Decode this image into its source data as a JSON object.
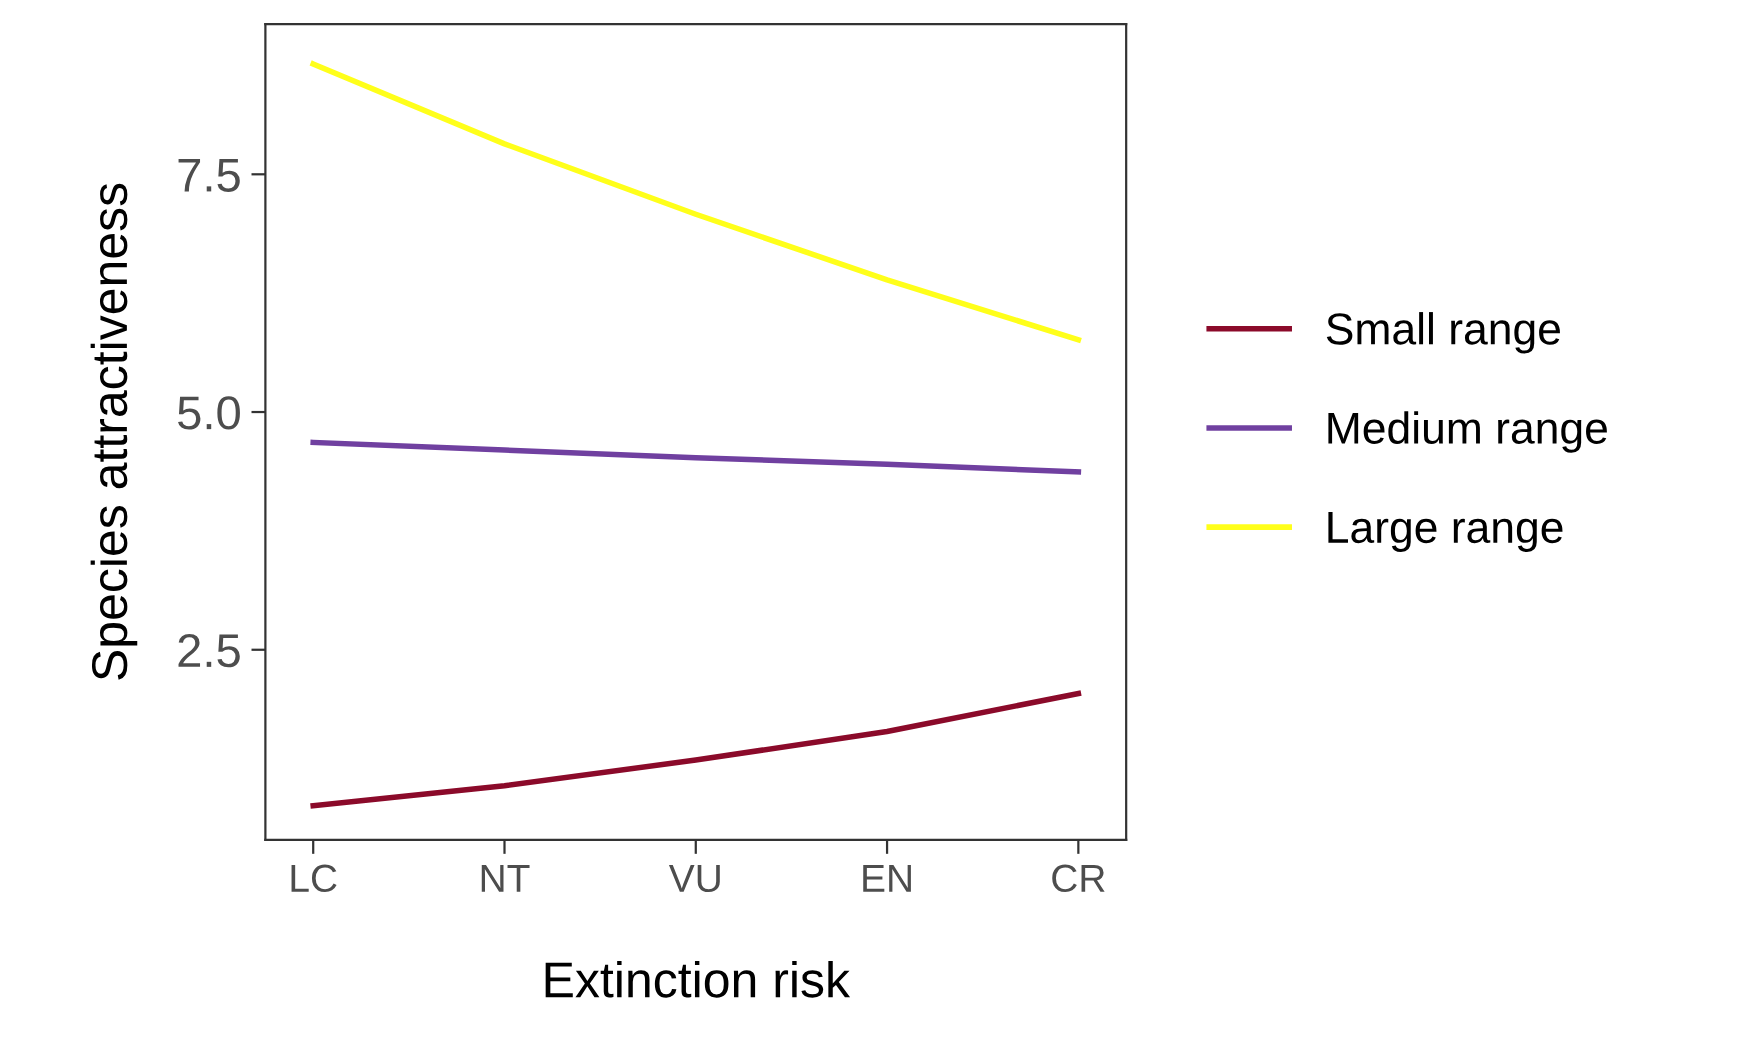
{
  "chart_data": {
    "type": "line",
    "xlabel": "Extinction risk",
    "ylabel": "Species attractiveness",
    "categories": [
      "LC",
      "NT",
      "VU",
      "EN",
      "CR"
    ],
    "series": [
      {
        "name": "Small range",
        "color": "#8b0a2a",
        "values": [
          0.86,
          1.07,
          1.34,
          1.64,
          2.04
        ]
      },
      {
        "name": "Medium range",
        "color": "#7040a0",
        "values": [
          4.68,
          4.6,
          4.52,
          4.45,
          4.37
        ]
      },
      {
        "name": "Large range",
        "color": "#ffff1a",
        "values": [
          8.66,
          7.82,
          7.08,
          6.39,
          5.76
        ]
      }
    ],
    "ylim": [
      0.5,
      9.08
    ],
    "yticks": [
      2.5,
      {
        "value": 5,
        "label": "5.0"
      },
      7.5
    ],
    "grid": false,
    "legend": "right",
    "marker": "none",
    "line_style": "solid"
  }
}
